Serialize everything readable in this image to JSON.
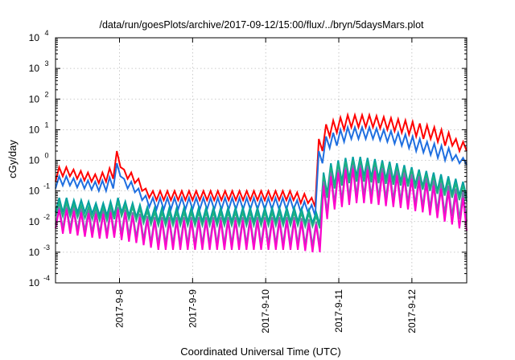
{
  "chart_data": {
    "type": "line",
    "title": "/data/run/goesPlots/archive/2017-09-12/15:00/flux/../bryn/5daysMars.plot",
    "xlabel": "Coordinated Universal Time (UTC)",
    "ylabel": "cGy/day",
    "yscale": "log",
    "ylim": [
      0.0001,
      10000
    ],
    "xlim": [
      "2017-09-07 03:00",
      "2017-09-12 18:00"
    ],
    "y_ticks": [
      {
        "base": "10",
        "exp": "-4",
        "value": 0.0001
      },
      {
        "base": "10",
        "exp": "-3",
        "value": 0.001
      },
      {
        "base": "10",
        "exp": "-2",
        "value": 0.01
      },
      {
        "base": "10",
        "exp": "-1",
        "value": 0.1
      },
      {
        "base": "10",
        "exp": "0",
        "value": 1
      },
      {
        "base": "10",
        "exp": "1",
        "value": 10
      },
      {
        "base": "10",
        "exp": "2",
        "value": 100
      },
      {
        "base": "10",
        "exp": "3",
        "value": 1000
      },
      {
        "base": "10",
        "exp": "4",
        "value": 10000
      }
    ],
    "x_ticks": [
      {
        "label": "2017-9-8",
        "t": "2017-09-08 00:00"
      },
      {
        "label": "2017-9-9",
        "t": "2017-09-09 00:00"
      },
      {
        "label": "2017-9-10",
        "t": "2017-09-10 00:00"
      },
      {
        "label": "2017-9-11",
        "t": "2017-09-11 00:00"
      },
      {
        "label": "2017-9-12",
        "t": "2017-09-12 00:00"
      }
    ],
    "grid": true,
    "series": [
      {
        "color": "#ff0000",
        "values": [
          0.2,
          0.6,
          0.3,
          0.6,
          0.3,
          0.5,
          0.25,
          0.45,
          0.22,
          0.4,
          0.2,
          0.35,
          0.18,
          0.4,
          0.2,
          0.55,
          0.25,
          2.0,
          0.6,
          0.5,
          0.25,
          0.4,
          0.18,
          0.25,
          0.1,
          0.12,
          0.06,
          0.1,
          0.05,
          0.1,
          0.05,
          0.1,
          0.05,
          0.1,
          0.05,
          0.1,
          0.05,
          0.1,
          0.05,
          0.1,
          0.05,
          0.1,
          0.05,
          0.1,
          0.05,
          0.1,
          0.05,
          0.1,
          0.05,
          0.1,
          0.05,
          0.1,
          0.05,
          0.1,
          0.05,
          0.1,
          0.05,
          0.1,
          0.05,
          0.1,
          0.05,
          0.1,
          0.05,
          0.1,
          0.05,
          0.1,
          0.05,
          0.09,
          0.04,
          0.08,
          0.04,
          0.06,
          0.03,
          5,
          2,
          15,
          6,
          20,
          8,
          25,
          10,
          30,
          12,
          30,
          12,
          30,
          12,
          30,
          12,
          28,
          11,
          26,
          10,
          24,
          9,
          22,
          8,
          20,
          7,
          18,
          6,
          16,
          5,
          14,
          5,
          12,
          4,
          10,
          3,
          8,
          3,
          5,
          2,
          4,
          2
        ]
      },
      {
        "color": "#1f6fe0",
        "values": [
          0.12,
          0.3,
          0.15,
          0.3,
          0.15,
          0.26,
          0.13,
          0.24,
          0.12,
          0.22,
          0.11,
          0.2,
          0.1,
          0.22,
          0.1,
          0.28,
          0.12,
          0.8,
          0.3,
          0.25,
          0.12,
          0.2,
          0.09,
          0.12,
          0.05,
          0.07,
          0.03,
          0.06,
          0.025,
          0.06,
          0.025,
          0.06,
          0.025,
          0.06,
          0.025,
          0.06,
          0.025,
          0.06,
          0.025,
          0.06,
          0.025,
          0.06,
          0.025,
          0.06,
          0.025,
          0.06,
          0.025,
          0.06,
          0.025,
          0.06,
          0.025,
          0.06,
          0.025,
          0.06,
          0.025,
          0.06,
          0.025,
          0.06,
          0.025,
          0.06,
          0.025,
          0.06,
          0.025,
          0.06,
          0.025,
          0.06,
          0.025,
          0.05,
          0.02,
          0.045,
          0.02,
          0.035,
          0.015,
          2,
          0.8,
          6,
          2.5,
          8,
          3,
          10,
          4,
          12,
          5,
          12,
          5,
          12,
          5,
          12,
          5,
          11,
          4.5,
          10,
          4,
          9,
          3.5,
          8,
          3,
          7,
          2.5,
          6,
          2,
          5,
          1.8,
          4,
          1.5,
          3.5,
          1.2,
          3,
          1,
          2.5,
          1,
          1.5,
          0.8,
          1.2,
          0.7
        ]
      },
      {
        "color": "#00a0a0",
        "values": [
          0.02,
          0.06,
          0.02,
          0.06,
          0.02,
          0.05,
          0.02,
          0.05,
          0.02,
          0.045,
          0.018,
          0.04,
          0.016,
          0.04,
          0.016,
          0.045,
          0.016,
          0.06,
          0.02,
          0.045,
          0.016,
          0.04,
          0.014,
          0.035,
          0.012,
          0.03,
          0.011,
          0.028,
          0.01,
          0.028,
          0.01,
          0.028,
          0.01,
          0.028,
          0.01,
          0.028,
          0.01,
          0.028,
          0.01,
          0.028,
          0.01,
          0.028,
          0.01,
          0.028,
          0.01,
          0.028,
          0.01,
          0.028,
          0.01,
          0.028,
          0.01,
          0.028,
          0.01,
          0.028,
          0.01,
          0.028,
          0.01,
          0.028,
          0.01,
          0.028,
          0.01,
          0.028,
          0.01,
          0.028,
          0.01,
          0.028,
          0.01,
          0.026,
          0.009,
          0.024,
          0.009,
          0.02,
          0.008,
          0.4,
          0.08,
          0.8,
          0.15,
          1,
          0.2,
          1.2,
          0.25,
          1.3,
          0.3,
          1.3,
          0.3,
          1.2,
          0.28,
          1.1,
          0.26,
          1,
          0.24,
          0.9,
          0.22,
          0.8,
          0.2,
          0.7,
          0.18,
          0.6,
          0.16,
          0.5,
          0.14,
          0.45,
          0.12,
          0.4,
          0.1,
          0.35,
          0.09,
          0.3,
          0.08,
          0.25,
          0.07,
          0.2,
          0.06
        ]
      },
      {
        "color": "#20b080",
        "values": [
          0.015,
          0.04,
          0.015,
          0.04,
          0.015,
          0.035,
          0.014,
          0.033,
          0.013,
          0.03,
          0.012,
          0.028,
          0.011,
          0.028,
          0.011,
          0.032,
          0.012,
          0.045,
          0.015,
          0.033,
          0.012,
          0.03,
          0.011,
          0.026,
          0.009,
          0.022,
          0.008,
          0.02,
          0.0075,
          0.02,
          0.0075,
          0.02,
          0.0075,
          0.02,
          0.0075,
          0.02,
          0.0075,
          0.02,
          0.0075,
          0.02,
          0.0075,
          0.02,
          0.0075,
          0.02,
          0.0075,
          0.02,
          0.0075,
          0.02,
          0.0075,
          0.02,
          0.0075,
          0.02,
          0.0075,
          0.02,
          0.0075,
          0.02,
          0.0075,
          0.02,
          0.0075,
          0.02,
          0.0075,
          0.02,
          0.0075,
          0.02,
          0.0075,
          0.02,
          0.0075,
          0.019,
          0.007,
          0.018,
          0.007,
          0.015,
          0.006,
          0.3,
          0.06,
          0.6,
          0.12,
          0.8,
          0.15,
          0.9,
          0.18,
          1,
          0.2,
          1,
          0.2,
          0.9,
          0.19,
          0.85,
          0.18,
          0.8,
          0.17,
          0.7,
          0.16,
          0.6,
          0.15,
          0.55,
          0.14,
          0.5,
          0.12,
          0.4,
          0.11,
          0.35,
          0.1,
          0.3,
          0.08,
          0.25,
          0.07,
          0.22,
          0.06,
          0.18,
          0.05,
          0.15,
          0.045
        ]
      },
      {
        "color": "#7c6fb0",
        "values": [
          0.008,
          0.03,
          0.006,
          0.03,
          0.006,
          0.028,
          0.005,
          0.026,
          0.005,
          0.024,
          0.0045,
          0.022,
          0.004,
          0.022,
          0.004,
          0.025,
          0.0045,
          0.03,
          0.004,
          0.025,
          0.0035,
          0.02,
          0.003,
          0.018,
          0.0025,
          0.015,
          0.002,
          0.014,
          0.0018,
          0.014,
          0.0018,
          0.014,
          0.0018,
          0.014,
          0.0018,
          0.014,
          0.0018,
          0.014,
          0.0018,
          0.014,
          0.0018,
          0.014,
          0.0018,
          0.014,
          0.0018,
          0.014,
          0.0018,
          0.014,
          0.0018,
          0.014,
          0.0018,
          0.014,
          0.0018,
          0.014,
          0.0018,
          0.014,
          0.0018,
          0.014,
          0.0018,
          0.014,
          0.0018,
          0.014,
          0.0018,
          0.014,
          0.0018,
          0.014,
          0.0018,
          0.013,
          0.0017,
          0.012,
          0.0016,
          0.01,
          0.0015,
          0.2,
          0.02,
          0.4,
          0.04,
          0.5,
          0.05,
          0.6,
          0.06,
          0.7,
          0.07,
          0.7,
          0.07,
          0.65,
          0.065,
          0.6,
          0.06,
          0.55,
          0.055,
          0.5,
          0.05,
          0.45,
          0.045,
          0.4,
          0.04,
          0.35,
          0.035,
          0.3,
          0.03,
          0.26,
          0.026,
          0.22,
          0.022,
          0.18,
          0.018,
          0.15,
          0.015,
          0.12,
          0.012,
          0.1,
          0.01
        ]
      },
      {
        "color": "#ff00cc",
        "values": [
          0.006,
          0.025,
          0.004,
          0.025,
          0.004,
          0.022,
          0.0035,
          0.02,
          0.0032,
          0.019,
          0.003,
          0.018,
          0.0028,
          0.018,
          0.0028,
          0.02,
          0.003,
          0.025,
          0.0025,
          0.02,
          0.0022,
          0.016,
          0.002,
          0.014,
          0.0017,
          0.012,
          0.0014,
          0.011,
          0.0012,
          0.011,
          0.0012,
          0.011,
          0.0012,
          0.011,
          0.0012,
          0.011,
          0.0012,
          0.011,
          0.0012,
          0.011,
          0.0012,
          0.011,
          0.0012,
          0.011,
          0.0012,
          0.011,
          0.0012,
          0.011,
          0.0012,
          0.011,
          0.0012,
          0.011,
          0.0012,
          0.011,
          0.0012,
          0.011,
          0.0012,
          0.011,
          0.0012,
          0.011,
          0.0012,
          0.011,
          0.0012,
          0.011,
          0.0012,
          0.011,
          0.0012,
          0.01,
          0.0011,
          0.009,
          0.001,
          0.008,
          0.001,
          0.15,
          0.012,
          0.3,
          0.025,
          0.4,
          0.03,
          0.5,
          0.035,
          0.55,
          0.04,
          0.55,
          0.04,
          0.5,
          0.038,
          0.45,
          0.035,
          0.4,
          0.032,
          0.35,
          0.03,
          0.32,
          0.028,
          0.28,
          0.025,
          0.25,
          0.022,
          0.22,
          0.02,
          0.18,
          0.016,
          0.15,
          0.013,
          0.12,
          0.01,
          0.1,
          0.008,
          0.08,
          0.006,
          0.06,
          0.005
        ]
      }
    ]
  }
}
